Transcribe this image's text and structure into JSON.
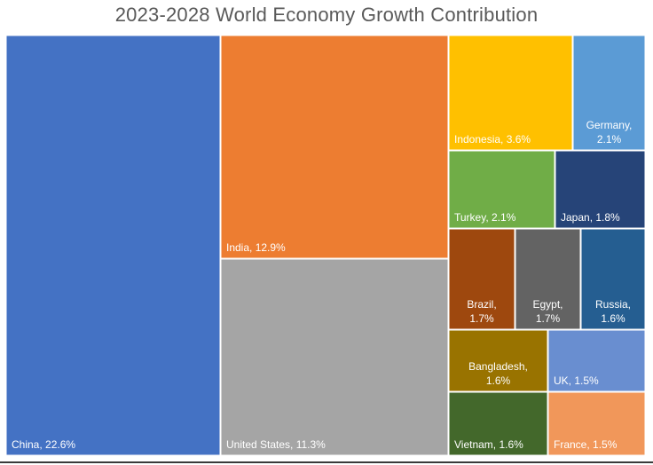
{
  "chart_data": {
    "type": "treemap",
    "title": "2023-2028 World Economy Growth Contribution",
    "unit": "%",
    "items": [
      {
        "name": "China",
        "value": 22.6,
        "label_lines": [
          "China, 22.6%"
        ],
        "color": "#4472C4"
      },
      {
        "name": "India",
        "value": 12.9,
        "label_lines": [
          "India, 12.9%"
        ],
        "color": "#ED7D31"
      },
      {
        "name": "United States",
        "value": 11.3,
        "label_lines": [
          "United States, 11.3%"
        ],
        "color": "#A5A5A5"
      },
      {
        "name": "Indonesia",
        "value": 3.6,
        "label_lines": [
          "Indonesia, 3.6%"
        ],
        "color": "#FFC000"
      },
      {
        "name": "Germany",
        "value": 2.1,
        "label_lines": [
          "Germany,",
          "2.1%"
        ],
        "color": "#5B9BD5"
      },
      {
        "name": "Turkey",
        "value": 2.1,
        "label_lines": [
          "Turkey, 2.1%"
        ],
        "color": "#70AD47"
      },
      {
        "name": "Japan",
        "value": 1.8,
        "label_lines": [
          "Japan, 1.8%"
        ],
        "color": "#264478"
      },
      {
        "name": "Brazil",
        "value": 1.7,
        "label_lines": [
          "Brazil,",
          "1.7%"
        ],
        "color": "#9E480E"
      },
      {
        "name": "Egypt",
        "value": 1.7,
        "label_lines": [
          "Egypt,",
          "1.7%"
        ],
        "color": "#636363"
      },
      {
        "name": "Russia",
        "value": 1.6,
        "label_lines": [
          "Russia,",
          "1.6%"
        ],
        "color": "#255E91"
      },
      {
        "name": "Bangladesh",
        "value": 1.6,
        "label_lines": [
          "Bangladesh,",
          "1.6%"
        ],
        "color": "#997300"
      },
      {
        "name": "UK",
        "value": 1.5,
        "label_lines": [
          "UK, 1.5%"
        ],
        "color": "#698ED0"
      },
      {
        "name": "Vietnam",
        "value": 1.6,
        "label_lines": [
          "Vietnam, 1.6%"
        ],
        "color": "#43682B"
      },
      {
        "name": "France",
        "value": 1.5,
        "label_lines": [
          "France, 1.5%"
        ],
        "color": "#F1975A"
      }
    ]
  }
}
